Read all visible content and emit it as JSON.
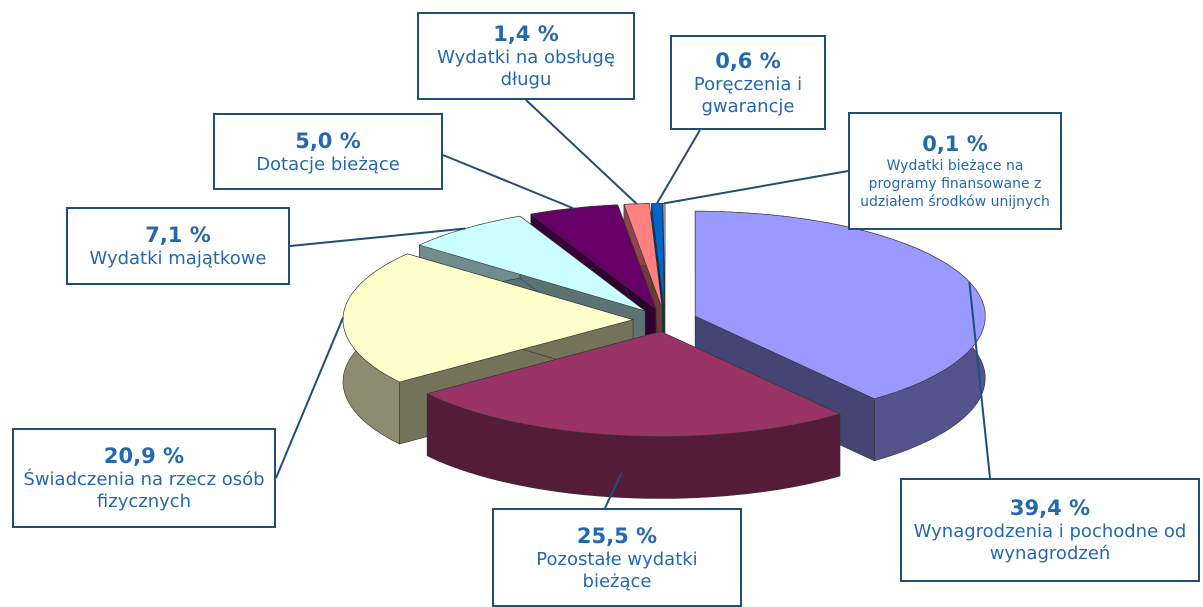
{
  "chart_data": {
    "type": "pie",
    "categories": [
      "Wynagrodzenia i pochodne od wynagrodzeń",
      "Pozostałe wydatki bieżące",
      "Świadczenia na rzecz osób fizycznych",
      "Wydatki majątkowe",
      "Dotacje bieżące",
      "Wydatki na obsługę długu",
      "Poręczenia i gwarancje",
      "Wydatki bieżące na programy finansowane z udziałem środków unijnych"
    ],
    "values": [
      39.4,
      25.5,
      20.9,
      7.1,
      5.0,
      1.4,
      0.6,
      0.1
    ],
    "value_labels": [
      "39,4 %",
      "25,5 %",
      "20,9 %",
      "7,1 %",
      "5,0 %",
      "1,4 %",
      "0,6 %",
      "0,1 %"
    ],
    "colors": [
      "#9999ff",
      "#993366",
      "#ffffcc",
      "#ccffff",
      "#660066",
      "#ff8080",
      "#0066cc",
      "#ccccff"
    ]
  }
}
